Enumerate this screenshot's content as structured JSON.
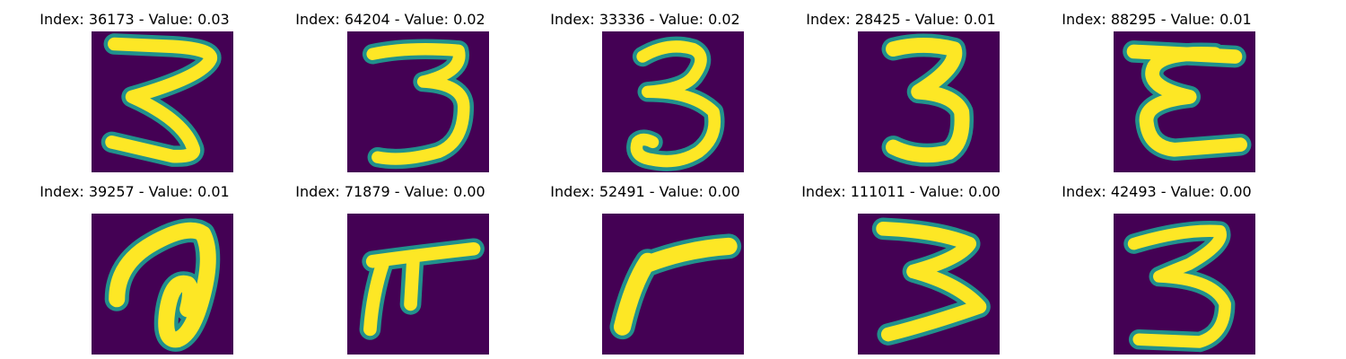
{
  "colors": {
    "background": "#440154",
    "stroke": "#fde725",
    "edge": "#21918c"
  },
  "panels": [
    {
      "title": "Index: 36173 - Value: 0.03",
      "index": 36173,
      "value": 0.03,
      "icon": "digit-3-zigzag"
    },
    {
      "title": "Index: 64204 - Value: 0.02",
      "index": 64204,
      "value": 0.02,
      "icon": "digit-3"
    },
    {
      "title": "Index: 33336 - Value: 0.02",
      "index": 33336,
      "value": 0.02,
      "icon": "digit-3-curly"
    },
    {
      "title": "Index: 28425 - Value: 0.01",
      "index": 28425,
      "value": 0.01,
      "icon": "digit-3-narrow"
    },
    {
      "title": "Index: 88295 - Value: 0.01",
      "index": 88295,
      "value": 0.01,
      "icon": "digit-3-epsilon"
    },
    {
      "title": "Index: 39257 - Value: 0.01",
      "index": 39257,
      "value": 0.01,
      "icon": "digit-loop-a"
    },
    {
      "title": "Index: 71879 - Value: 0.00",
      "index": 71879,
      "value": 0.0,
      "icon": "digit-pi-shape"
    },
    {
      "title": "Index: 52491 - Value: 0.00",
      "index": 52491,
      "value": 0.0,
      "icon": "digit-7-hook"
    },
    {
      "title": "Index: 111011 - Value: 0.00",
      "index": 111011,
      "value": 0.0,
      "icon": "digit-3-angular"
    },
    {
      "title": "Index: 42493 - Value: 0.00",
      "index": 42493,
      "value": 0.0,
      "icon": "digit-3-round"
    }
  ]
}
